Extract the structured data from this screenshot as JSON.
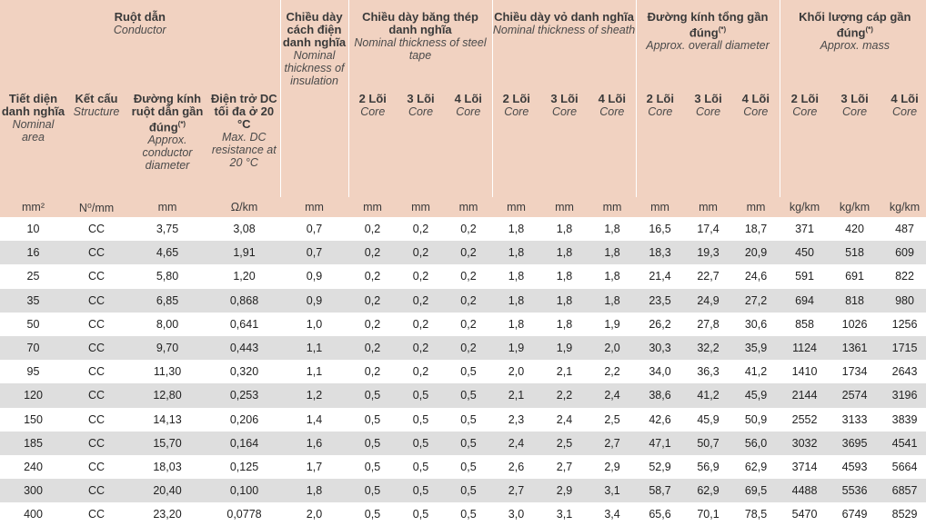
{
  "headers": {
    "conductor": {
      "vi": "Ruột dẫn",
      "en": "Conductor"
    },
    "insulation": {
      "vi": "Chiều dày cách điện danh nghĩa",
      "en": "Nominal thickness of insulation"
    },
    "steel_tape": {
      "vi": "Chiều dày băng thép danh nghĩa",
      "en": "Nominal thickness of steel tape"
    },
    "sheath": {
      "vi": "Chiều dày vỏ danh nghĩa",
      "en": "Nominal thickness of sheath"
    },
    "overall_diameter": {
      "vi": "Đường kính tổng gần đúng",
      "sup": "(*)",
      "en": "Approx. overall diameter"
    },
    "mass": {
      "vi": "Khối lượng cáp gần đúng",
      "sup": "(*)",
      "en": "Approx. mass"
    },
    "area": {
      "vi": "Tiết diện danh nghĩa",
      "en": "Nominal area"
    },
    "structure": {
      "vi": "Kết cấu",
      "en": "Structure"
    },
    "cond_diameter": {
      "vi": "Đường kính ruột dẫn gần đúng",
      "sup": "(*)",
      "en": "Approx. conductor diameter"
    },
    "resistance": {
      "vi": "Điện trở DC tối đa ở 20 °C",
      "en": "Max. DC resistance at 20 °C"
    },
    "core_2": {
      "vi": "2 Lõi",
      "en": "Core"
    },
    "core_3": {
      "vi": "3 Lõi",
      "en": "Core"
    },
    "core_4": {
      "vi": "4 Lõi",
      "en": "Core"
    }
  },
  "units": [
    "mm²",
    "N⁰/mm",
    "mm",
    "Ω/km",
    "mm",
    "mm",
    "mm",
    "mm",
    "mm",
    "mm",
    "mm",
    "mm",
    "mm",
    "mm",
    "kg/km",
    "kg/km",
    "kg/km"
  ],
  "rows": [
    [
      "10",
      "CC",
      "3,75",
      "3,08",
      "0,7",
      "0,2",
      "0,2",
      "0,2",
      "1,8",
      "1,8",
      "1,8",
      "16,5",
      "17,4",
      "18,7",
      "371",
      "420",
      "487"
    ],
    [
      "16",
      "CC",
      "4,65",
      "1,91",
      "0,7",
      "0,2",
      "0,2",
      "0,2",
      "1,8",
      "1,8",
      "1,8",
      "18,3",
      "19,3",
      "20,9",
      "450",
      "518",
      "609"
    ],
    [
      "25",
      "CC",
      "5,80",
      "1,20",
      "0,9",
      "0,2",
      "0,2",
      "0,2",
      "1,8",
      "1,8",
      "1,8",
      "21,4",
      "22,7",
      "24,6",
      "591",
      "691",
      "822"
    ],
    [
      "35",
      "CC",
      "6,85",
      "0,868",
      "0,9",
      "0,2",
      "0,2",
      "0,2",
      "1,8",
      "1,8",
      "1,8",
      "23,5",
      "24,9",
      "27,2",
      "694",
      "818",
      "980"
    ],
    [
      "50",
      "CC",
      "8,00",
      "0,641",
      "1,0",
      "0,2",
      "0,2",
      "0,2",
      "1,8",
      "1,8",
      "1,9",
      "26,2",
      "27,8",
      "30,6",
      "858",
      "1026",
      "1256"
    ],
    [
      "70",
      "CC",
      "9,70",
      "0,443",
      "1,1",
      "0,2",
      "0,2",
      "0,2",
      "1,9",
      "1,9",
      "2,0",
      "30,3",
      "32,2",
      "35,9",
      "1124",
      "1361",
      "1715"
    ],
    [
      "95",
      "CC",
      "11,30",
      "0,320",
      "1,1",
      "0,2",
      "0,2",
      "0,5",
      "2,0",
      "2,1",
      "2,2",
      "34,0",
      "36,3",
      "41,2",
      "1410",
      "1734",
      "2643"
    ],
    [
      "120",
      "CC",
      "12,80",
      "0,253",
      "1,2",
      "0,5",
      "0,5",
      "0,5",
      "2,1",
      "2,2",
      "2,4",
      "38,6",
      "41,2",
      "45,9",
      "2144",
      "2574",
      "3196"
    ],
    [
      "150",
      "CC",
      "14,13",
      "0,206",
      "1,4",
      "0,5",
      "0,5",
      "0,5",
      "2,3",
      "2,4",
      "2,5",
      "42,6",
      "45,9",
      "50,9",
      "2552",
      "3133",
      "3839"
    ],
    [
      "185",
      "CC",
      "15,70",
      "0,164",
      "1,6",
      "0,5",
      "0,5",
      "0,5",
      "2,4",
      "2,5",
      "2,7",
      "47,1",
      "50,7",
      "56,0",
      "3032",
      "3695",
      "4541"
    ],
    [
      "240",
      "CC",
      "18,03",
      "0,125",
      "1,7",
      "0,5",
      "0,5",
      "0,5",
      "2,6",
      "2,7",
      "2,9",
      "52,9",
      "56,9",
      "62,9",
      "3714",
      "4593",
      "5664"
    ],
    [
      "300",
      "CC",
      "20,40",
      "0,100",
      "1,8",
      "0,5",
      "0,5",
      "0,5",
      "2,7",
      "2,9",
      "3,1",
      "58,7",
      "62,9",
      "69,5",
      "4488",
      "5536",
      "6857"
    ],
    [
      "400",
      "CC",
      "23,20",
      "0,0778",
      "2,0",
      "0,5",
      "0,5",
      "0,5",
      "3,0",
      "3,1",
      "3,4",
      "65,6",
      "70,1",
      "78,5",
      "5470",
      "6749",
      "8529"
    ]
  ],
  "colors": {
    "header_bg": "#f1d2c1",
    "stripe": "#dedede",
    "watermark": "#e8323c"
  }
}
